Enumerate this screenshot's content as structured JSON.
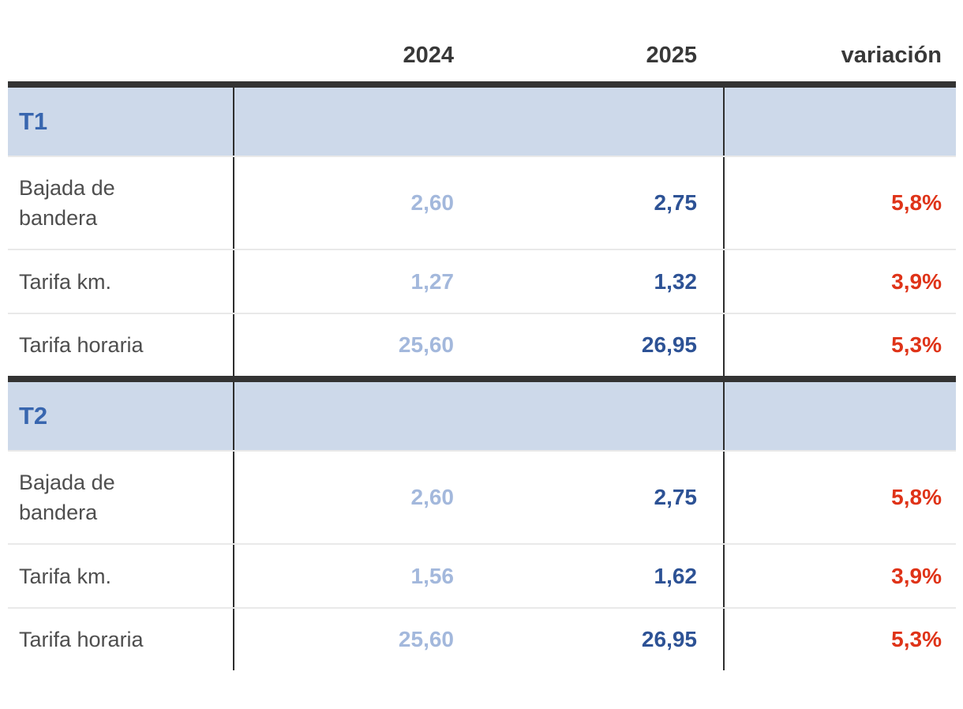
{
  "colors": {
    "section_bar": "#333333",
    "section_bg": "#cdd9ea",
    "section_label": "#3866af",
    "header_text": "#383838",
    "row_label": "#4e4e4e",
    "value_2024": "#a3b8dc",
    "value_2025": "#2d5295",
    "variation_red": "#df3318",
    "row_separator": "#e9e9e9",
    "column_divider": "#2e2e2e"
  },
  "chart_data": {
    "type": "table",
    "columns": [
      "",
      "2024",
      "2025",
      "variación"
    ],
    "sections": [
      {
        "label": "T1",
        "rows": [
          {
            "label": "Bajada de\nbandera",
            "v2024": "2,60",
            "v2025": "2,75",
            "variacion": "5,8%"
          },
          {
            "label": "Tarifa km.",
            "v2024": "1,27",
            "v2025": "1,32",
            "variacion": "3,9%"
          },
          {
            "label": "Tarifa horaria",
            "v2024": "25,60",
            "v2025": "26,95",
            "variacion": "5,3%"
          }
        ]
      },
      {
        "label": "T2",
        "rows": [
          {
            "label": "Bajada de\nbandera",
            "v2024": "2,60",
            "v2025": "2,75",
            "variacion": "5,8%"
          },
          {
            "label": "Tarifa km.",
            "v2024": "1,56",
            "v2025": "1,62",
            "variacion": "3,9%"
          },
          {
            "label": "Tarifa horaria",
            "v2024": "25,60",
            "v2025": "26,95",
            "variacion": "5,3%"
          }
        ]
      }
    ]
  }
}
